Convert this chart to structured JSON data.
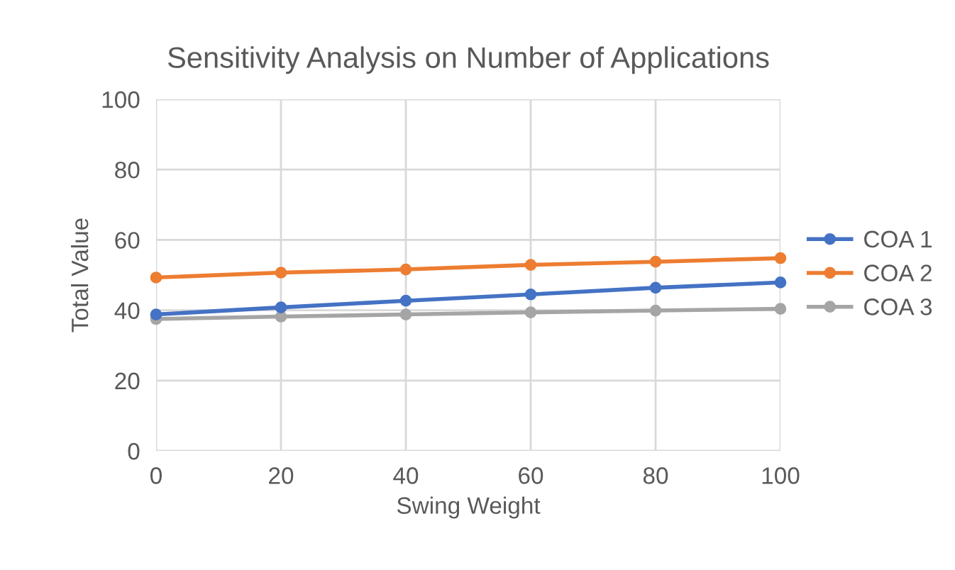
{
  "chart_data": {
    "type": "line",
    "title": "Sensitivity Analysis on Number of Applications",
    "xlabel": "Swing Weight",
    "ylabel": "Total Value",
    "x": [
      0,
      20,
      40,
      60,
      80,
      100
    ],
    "series": [
      {
        "name": "COA 1",
        "color": "#4472c4",
        "values": [
          38.8,
          40.8,
          42.7,
          44.5,
          46.4,
          47.9
        ]
      },
      {
        "name": "COA 2",
        "color": "#ed7d31",
        "values": [
          49.3,
          50.7,
          51.6,
          52.9,
          53.8,
          54.8
        ]
      },
      {
        "name": "COA 3",
        "color": "#a5a5a5",
        "values": [
          37.5,
          38.2,
          38.8,
          39.4,
          39.9,
          40.4
        ]
      }
    ],
    "xlim": [
      0,
      100
    ],
    "xticks": [
      0,
      20,
      40,
      60,
      80,
      100
    ],
    "ylim": [
      0,
      100
    ],
    "yticks": [
      0,
      20,
      40,
      60,
      80,
      100
    ],
    "grid": true,
    "legend": "right",
    "marker": "circle",
    "line_style": "solid"
  }
}
